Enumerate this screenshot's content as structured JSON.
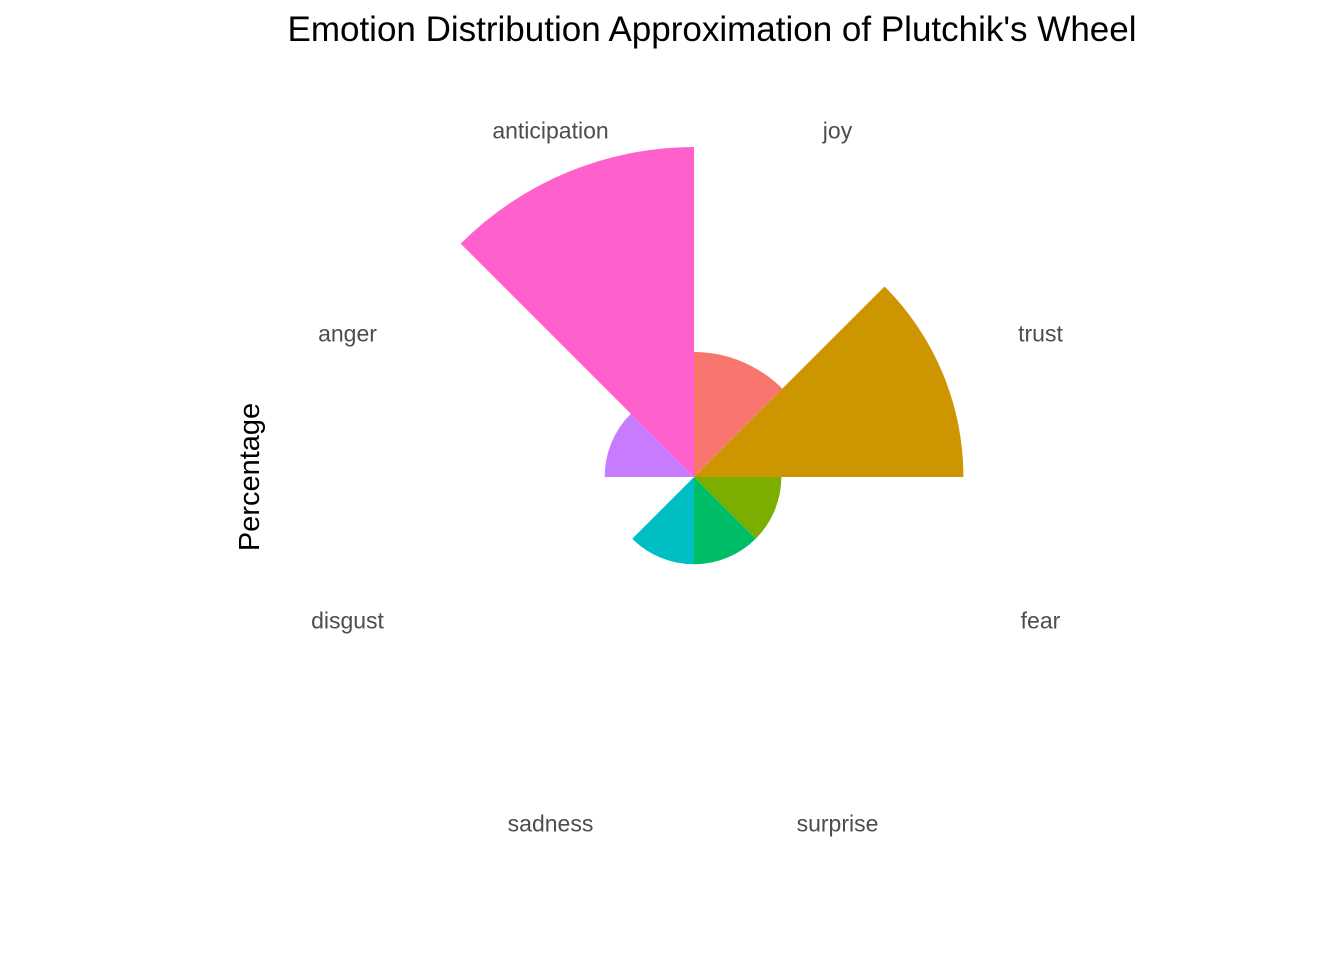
{
  "chart_data": {
    "type": "bar",
    "coord": "polar",
    "title": "Emotion Distribution Approximation of Plutchik's Wheel",
    "xlabel": "",
    "ylabel": "Percentage",
    "categories": [
      "joy",
      "trust",
      "fear",
      "surprise",
      "sadness",
      "disgust",
      "anger",
      "anticipation"
    ],
    "values": [
      4.3,
      20,
      2.1,
      2.1,
      2.1,
      0,
      2.2,
      30
    ],
    "colors": [
      "#F8766D",
      "#CD9600",
      "#7CAE00",
      "#00BE67",
      "#00BFC4",
      "#00A9FF",
      "#C77CFF",
      "#FF61CC"
    ],
    "rlim": [
      0,
      30
    ],
    "grid": false,
    "legend": "none"
  }
}
